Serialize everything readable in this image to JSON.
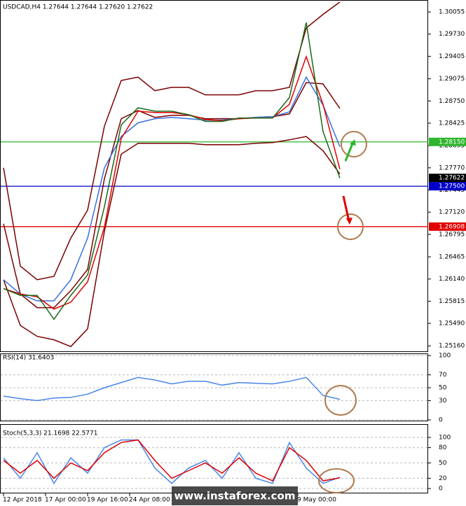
{
  "chart_data": [
    {
      "type": "line",
      "title": "USDCAD,H4  1.27644 1.27644 1.27620 1.27622",
      "x": [
        0,
        2,
        4,
        6,
        8,
        10,
        12,
        14,
        16,
        18,
        20,
        22,
        24,
        26,
        28,
        30,
        32,
        34,
        36,
        38,
        40
      ],
      "xlim": [
        0,
        50
      ],
      "ylim": [
        1.2507,
        1.3023
      ],
      "yticks": [
        {
          "value": 1.30055,
          "label": "1.30055"
        },
        {
          "value": 1.2973,
          "label": "1.29730"
        },
        {
          "value": 1.29405,
          "label": "1.29405"
        },
        {
          "value": 1.29075,
          "label": "1.29075"
        },
        {
          "value": 1.2875,
          "label": "1.28750"
        },
        {
          "value": 1.28425,
          "label": "1.28425"
        },
        {
          "value": 1.28095,
          "label": "1.28095"
        },
        {
          "value": 1.2777,
          "label": "1.27770"
        },
        {
          "value": 1.27445,
          "label": "1.27445"
        },
        {
          "value": 1.2712,
          "label": "1.27120"
        },
        {
          "value": 1.26795,
          "label": "1.26795"
        },
        {
          "value": 1.26465,
          "label": "1.26465"
        },
        {
          "value": 1.2614,
          "label": "1.26140"
        },
        {
          "value": 1.25815,
          "label": "1.25815"
        },
        {
          "value": 1.2549,
          "label": "1.25490"
        },
        {
          "value": 1.2516,
          "label": "1.25160"
        }
      ],
      "levels": [
        {
          "value": 1.2815,
          "label": "1.28150",
          "color": "#2db52d"
        },
        {
          "value": 1.27622,
          "label": "1.27622",
          "color": "#000000"
        },
        {
          "value": 1.275,
          "label": "1.27500",
          "color": "#0000c8"
        },
        {
          "value": 1.26908,
          "label": "1.26908",
          "color": "#e00000"
        }
      ],
      "series": [
        {
          "color": "#7a0000",
          "values": [
            1.2777,
            1.2633,
            1.2613,
            1.2618,
            1.2674,
            1.2715,
            1.2838,
            1.2905,
            1.291,
            1.289,
            1.2895,
            1.2895,
            1.2884,
            1.2884,
            1.2884,
            1.289,
            1.289,
            1.2895,
            1.2982,
            1.3002,
            1.302
          ]
        },
        {
          "color": "#7a0000",
          "values": [
            1.2613,
            1.2546,
            1.253,
            1.2525,
            1.2515,
            1.2541,
            1.2684,
            1.2797,
            1.2813,
            1.2813,
            1.2813,
            1.2813,
            1.2811,
            1.2811,
            1.2811,
            1.2813,
            1.2814,
            1.2818,
            1.2823,
            1.2802,
            1.2768
          ]
        },
        {
          "color": "#7a0000",
          "values": [
            1.2695,
            1.2592,
            1.2572,
            1.2572,
            1.2597,
            1.2628,
            1.2761,
            1.2849,
            1.2861,
            1.2851,
            1.2854,
            1.2854,
            1.2849,
            1.2849,
            1.2849,
            1.2851,
            1.2852,
            1.2856,
            1.2902,
            1.29,
            1.2864
          ]
        },
        {
          "color": "#3a6fe0",
          "values": [
            1.2613,
            1.2592,
            1.2582,
            1.2582,
            1.2613,
            1.2674,
            1.2777,
            1.2823,
            1.2843,
            1.2849,
            1.2851,
            1.2849,
            1.2847,
            1.2847,
            1.2849,
            1.2851,
            1.2852,
            1.2859,
            1.291,
            1.2869,
            1.2808
          ]
        },
        {
          "color": "#e00000",
          "values": [
            1.26,
            1.2592,
            1.2588,
            1.257,
            1.258,
            1.261,
            1.269,
            1.282,
            1.286,
            1.2858,
            1.2858,
            1.2855,
            1.2848,
            1.2846,
            1.2849,
            1.285,
            1.285,
            1.287,
            1.294,
            1.287,
            1.2775
          ]
        },
        {
          "color": "#1a6a1a",
          "values": [
            1.26,
            1.259,
            1.259,
            1.2555,
            1.259,
            1.262,
            1.272,
            1.284,
            1.2865,
            1.286,
            1.286,
            1.2855,
            1.2845,
            1.2845,
            1.285,
            1.285,
            1.285,
            1.288,
            1.299,
            1.283,
            1.2762
          ]
        }
      ]
    },
    {
      "type": "line",
      "title": "RSI(14) 31.6403",
      "x": [
        0,
        2,
        4,
        6,
        8,
        10,
        12,
        14,
        16,
        18,
        20,
        22,
        24,
        26,
        28,
        30,
        32,
        34,
        36,
        38,
        40
      ],
      "xlim": [
        0,
        50
      ],
      "ylim": [
        0,
        100
      ],
      "yticks": [
        0,
        30,
        50,
        70,
        100
      ],
      "series": [
        {
          "color": "#4a86e8",
          "values": [
            37,
            33,
            30,
            34,
            35,
            40,
            50,
            58,
            66,
            62,
            56,
            60,
            60,
            54,
            58,
            57,
            56,
            60,
            66,
            38,
            32
          ]
        }
      ]
    },
    {
      "type": "line",
      "title": "Stoch(5,3,3) 21.1698 22.5771",
      "x": [
        0,
        2,
        4,
        6,
        8,
        10,
        12,
        14,
        16,
        18,
        20,
        22,
        24,
        26,
        28,
        30,
        32,
        34,
        36,
        38,
        40
      ],
      "xlim": [
        0,
        50
      ],
      "ylim": [
        0,
        100
      ],
      "yticks": [
        0,
        20,
        50,
        80,
        100
      ],
      "xticks": [
        {
          "value": 0,
          "label": "12 Apr 2018"
        },
        {
          "value": 5,
          "label": "17 Apr 00:00"
        },
        {
          "value": 10,
          "label": "19 Apr 16:00"
        },
        {
          "value": 15,
          "label": "24 Apr 08:00"
        },
        {
          "value": 35,
          "label": "9 May 00:00"
        }
      ],
      "watermark": "www.instaforex.com",
      "series": [
        {
          "color": "#4a86e8",
          "values": [
            60,
            20,
            70,
            10,
            60,
            30,
            80,
            95,
            95,
            40,
            10,
            40,
            55,
            20,
            70,
            20,
            10,
            90,
            40,
            10,
            22
          ]
        },
        {
          "color": "#e00000",
          "values": [
            55,
            30,
            55,
            20,
            50,
            35,
            70,
            90,
            95,
            55,
            20,
            35,
            50,
            30,
            60,
            30,
            15,
            80,
            55,
            15,
            21
          ]
        }
      ]
    }
  ]
}
